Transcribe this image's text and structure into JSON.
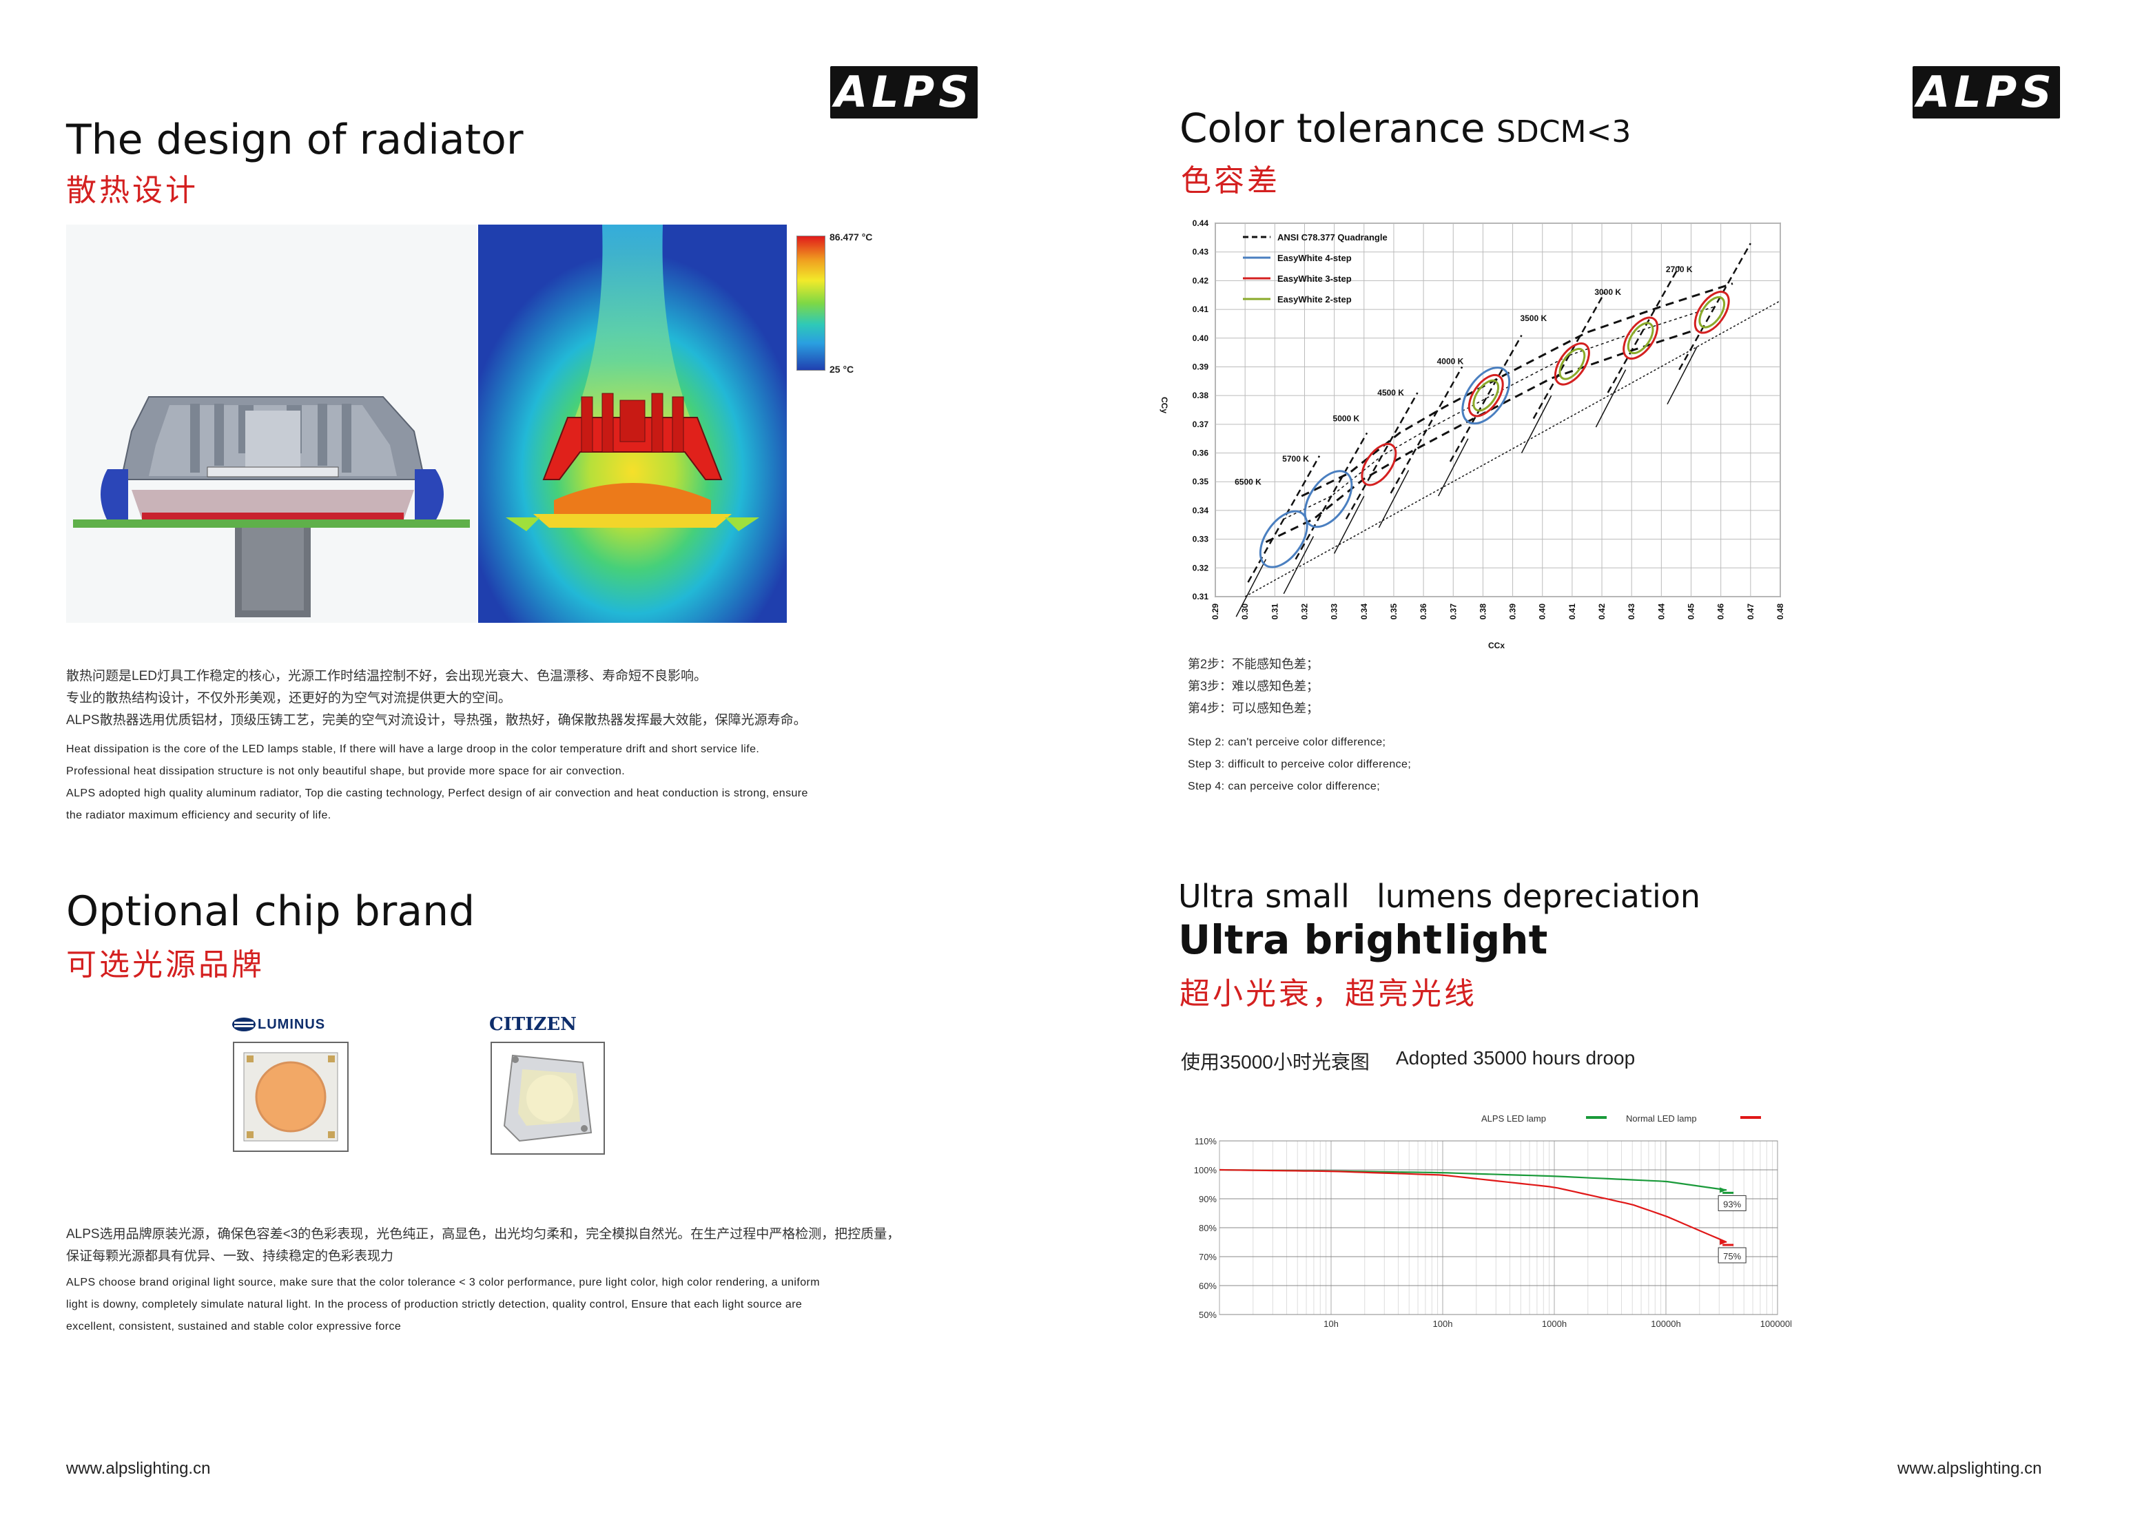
{
  "left": {
    "logo": "ALPS",
    "radiator": {
      "title_en": "The design of radiator",
      "title_cn": "散热设计",
      "thermal_max": "86.477 °C",
      "thermal_min": "25 °C",
      "cn_lines": [
        "散热问题是LED灯具工作稳定的核心，光源工作时结温控制不好，会出现光衰大、色温漂移、寿命短不良影响。",
        "专业的散热结构设计，不仅外形美观，还更好的为空气对流提供更大的空间。",
        "ALPS散热器选用优质铝材，顶级压铸工艺，完美的空气对流设计，导热强，散热好，确保散热器发挥最大效能，保障光源寿命。"
      ],
      "en_lines": [
        "Heat dissipation is the core of the LED lamps stable, If there will have a large droop in the color temperature drift and short service life.",
        "Professional heat dissipation structure is not only beautiful shape, but provide more space for air convection.",
        "ALPS adopted high quality aluminum radiator, Top die casting technology, Perfect design of air convection and heat conduction is strong, ensure",
        "the radiator maximum efficiency and security of life."
      ]
    },
    "chip": {
      "title_en": "Optional  chip brand",
      "title_cn": "可选光源品牌",
      "brand1": "LUMINUS",
      "brand2": "CITIZEN",
      "cn_lines": [
        "ALPS选用品牌原装光源，确保色容差<3的色彩表现，光色纯正，高显色，出光均匀柔和，完全模拟自然光。在生产过程中严格检测，把控质量，",
        "保证每颗光源都具有优异、一致、持续稳定的色彩表现力"
      ],
      "en_lines": [
        "ALPS choose brand original light source, make sure that the color tolerance < 3 color performance, pure light color, high color rendering, a uniform",
        "light is downy, completely simulate natural light. In the process of production strictly detection, quality control, Ensure that each light source are",
        "excellent, consistent, sustained and stable color expressive force"
      ]
    },
    "url": "www.alpslighting.cn"
  },
  "right": {
    "logo": "ALPS",
    "color": {
      "title_en": "Color tolerance",
      "title_sub": "SDCM<3",
      "title_cn": "色容差",
      "steps_cn": [
        "第2步：不能感知色差；",
        "第3步：难以感知色差；",
        "第4步：可以感知色差；"
      ],
      "steps_en": [
        "Step 2: can't perceive color difference;",
        "Step 3: difficult to perceive color difference;",
        "Step 4: can perceive color difference;"
      ]
    },
    "lumen": {
      "line1_a": "Ultra small",
      "line1_b": "lumens depreciation",
      "line2_a": "Ultra bright",
      "line2_b": "light",
      "title_cn": "超小光衰，超亮光线",
      "caption_cn": "使用35000小时光衰图",
      "caption_en": "Adopted  35000 hours droop"
    },
    "url": "www.alpslighting.cn"
  },
  "chart_data": [
    {
      "type": "scatter",
      "xlabel": "CCx",
      "ylabel": "CCy",
      "xlim": [
        0.29,
        0.48
      ],
      "ylim": [
        0.31,
        0.44
      ],
      "x_ticks": [
        "0.29",
        "0.30",
        "0.31",
        "0.32",
        "0.33",
        "0.34",
        "0.35",
        "0.36",
        "0.37",
        "0.38",
        "0.39",
        "0.40",
        "0.41",
        "0.42",
        "0.43",
        "0.44",
        "0.45",
        "0.46",
        "0.47",
        "0.48"
      ],
      "y_ticks": [
        "0.31",
        "0.32",
        "0.33",
        "0.34",
        "0.35",
        "0.36",
        "0.37",
        "0.38",
        "0.39",
        "0.40",
        "0.41",
        "0.42",
        "0.43",
        "0.44"
      ],
      "legend": [
        {
          "name": "ANSI C78.377 Quadrangle",
          "color": "#111111",
          "style": "dashed"
        },
        {
          "name": "EasyWhite 4-step",
          "color": "#4a7fc0"
        },
        {
          "name": "EasyWhite 3-step",
          "color": "#d42020"
        },
        {
          "name": "EasyWhite 2-step",
          "color": "#8aaa2a"
        }
      ],
      "cct_points": [
        {
          "label": "6500 K",
          "x": 0.313,
          "y": 0.337
        },
        {
          "label": "5700 K",
          "x": 0.329,
          "y": 0.345
        },
        {
          "label": "5000 K",
          "x": 0.346,
          "y": 0.359
        },
        {
          "label": "4500 K",
          "x": 0.361,
          "y": 0.368
        },
        {
          "label": "4000 K",
          "x": 0.381,
          "y": 0.379
        },
        {
          "label": "3500 K",
          "x": 0.409,
          "y": 0.394
        },
        {
          "label": "3000 K",
          "x": 0.434,
          "y": 0.403
        },
        {
          "label": "2700 K",
          "x": 0.458,
          "y": 0.411
        }
      ],
      "ellipses": [
        {
          "cct": "6500 K",
          "x": 0.313,
          "y": 0.33,
          "steps": [
            "4-step"
          ]
        },
        {
          "cct": "5700 K",
          "x": 0.328,
          "y": 0.344,
          "steps": [
            "4-step"
          ]
        },
        {
          "cct": "5000 K",
          "x": 0.345,
          "y": 0.356,
          "steps": [
            "3-step"
          ]
        },
        {
          "cct": "4000 K",
          "x": 0.381,
          "y": 0.38,
          "steps": [
            "4-step",
            "3-step",
            "2-step"
          ]
        },
        {
          "cct": "3500 K",
          "x": 0.41,
          "y": 0.391,
          "steps": [
            "3-step",
            "2-step"
          ]
        },
        {
          "cct": "3000 K",
          "x": 0.433,
          "y": 0.4,
          "steps": [
            "3-step",
            "2-step"
          ]
        },
        {
          "cct": "2700 K",
          "x": 0.457,
          "y": 0.409,
          "steps": [
            "3-step",
            "2-step"
          ]
        }
      ]
    },
    {
      "type": "line",
      "x_scale": "log",
      "xlim": [
        1,
        100000
      ],
      "ylim": [
        50,
        110
      ],
      "x_ticks": [
        "10h",
        "100h",
        "1000h",
        "10000h",
        "100000h"
      ],
      "y_ticks": [
        "50%",
        "60%",
        "70%",
        "80%",
        "90%",
        "100%",
        "110%"
      ],
      "series": [
        {
          "name": "ALPS LED lamp",
          "color": "#1a9a3a",
          "x": [
            1,
            10,
            100,
            1000,
            10000,
            35000
          ],
          "y": [
            100,
            99.6,
            99,
            97.8,
            96,
            93
          ]
        },
        {
          "name": "Normal LED lamp",
          "color": "#e01818",
          "x": [
            1,
            10,
            100,
            1000,
            5000,
            10000,
            35000
          ],
          "y": [
            100,
            99.5,
            98.2,
            94,
            88,
            84,
            75
          ]
        }
      ],
      "annotations": [
        "93%",
        "75%"
      ]
    }
  ]
}
